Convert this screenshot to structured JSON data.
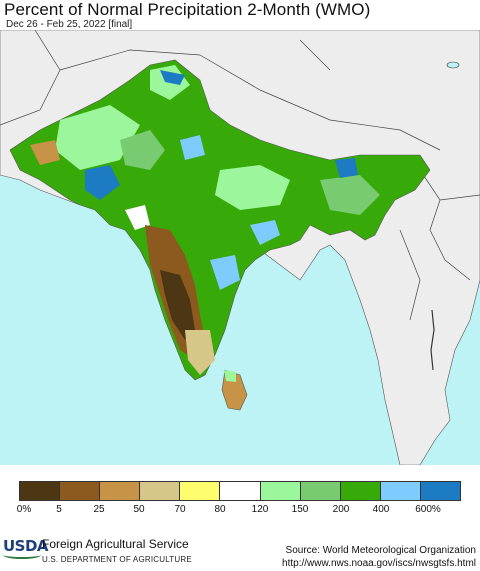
{
  "header": {
    "title": "Percent of Normal Precipitation 2-Month (WMO)",
    "subtitle": "Dec 26 - Feb 25, 2022 [final]"
  },
  "legend": {
    "colors": [
      "#4d3614",
      "#8c5a1f",
      "#c69347",
      "#d6c688",
      "#fdfd6d",
      "#ffffff",
      "#9cf79c",
      "#79cb71",
      "#37a908",
      "#7ecbfd",
      "#1c7bc2"
    ],
    "ticks": [
      "0%",
      "5",
      "25",
      "50",
      "70",
      "80",
      "120",
      "150",
      "200",
      "400",
      "600%"
    ]
  },
  "footer": {
    "logo_text": "USDA",
    "agency": "Foreign Agricultural Service",
    "department": "U.S. DEPARTMENT OF AGRICULTURE",
    "source": "Source: World Meteorological Organization",
    "url": "http://www.nws.noaa.gov/iscs/nwsgtsfs.html"
  }
}
